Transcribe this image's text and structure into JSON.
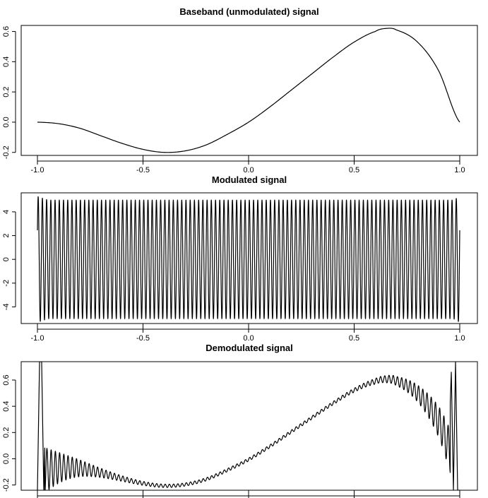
{
  "chart_data": [
    {
      "type": "line",
      "title": "Baseband (unmodulated) signal",
      "xlabel": "",
      "ylabel": "",
      "xlim": [
        -1.0,
        1.0
      ],
      "ylim": [
        -0.22,
        0.64
      ],
      "x_ticks": [
        -1.0,
        -0.5,
        0.0,
        0.5,
        1.0
      ],
      "x_tick_labels": [
        "-1.0",
        "-0.5",
        "0.0",
        "0.5",
        "1.0"
      ],
      "y_ticks": [
        -0.2,
        0.0,
        0.2,
        0.4,
        0.6
      ],
      "y_tick_labels": [
        "-0.2",
        "0.0",
        "0.2",
        "0.4",
        "0.6"
      ],
      "grid": false,
      "series": [
        {
          "x": [
            -1.0,
            -0.9,
            -0.8,
            -0.7,
            -0.6,
            -0.5,
            -0.4,
            -0.3,
            -0.2,
            -0.1,
            0.0,
            0.1,
            0.2,
            0.3,
            0.4,
            0.5,
            0.6,
            0.65,
            0.7,
            0.8,
            0.9,
            1.0
          ],
          "y": [
            0.0,
            -0.01,
            -0.04,
            -0.09,
            -0.14,
            -0.18,
            -0.2,
            -0.19,
            -0.15,
            -0.08,
            0.0,
            0.1,
            0.21,
            0.32,
            0.43,
            0.53,
            0.6,
            0.62,
            0.61,
            0.53,
            0.34,
            0.0
          ]
        }
      ]
    },
    {
      "type": "line",
      "title": "Modulated signal",
      "xlabel": "",
      "ylabel": "",
      "xlim": [
        -1.0,
        1.0
      ],
      "ylim": [
        -5.4,
        5.6
      ],
      "x_ticks": [
        -1.0,
        -0.5,
        0.0,
        0.5,
        1.0
      ],
      "x_tick_labels": [
        "-1.0",
        "-0.5",
        "0.0",
        "0.5",
        "1.0"
      ],
      "y_ticks": [
        -4,
        -2,
        0,
        2,
        4
      ],
      "y_tick_labels": [
        "-4",
        "-2",
        "0",
        "2",
        "4"
      ],
      "grid": false,
      "carrier_cycles_per_unit": 50,
      "envelope": [
        {
          "x": -1.0,
          "y": 5.0
        },
        {
          "x": -0.99,
          "y": 2.3
        },
        {
          "x": -0.985,
          "y": -4.6
        },
        {
          "x": -0.97,
          "y": 5.3
        },
        {
          "x": -0.96,
          "y": -5.0
        },
        {
          "x": -0.95,
          "y": 5.0
        },
        {
          "x": 0.0,
          "y": 5.0
        },
        {
          "x": 0.98,
          "y": 5.0
        },
        {
          "x": 0.985,
          "y": 5.3
        },
        {
          "x": 0.99,
          "y": -5.2
        },
        {
          "x": 1.0,
          "y": 2.3
        }
      ]
    },
    {
      "type": "line",
      "title": "Demodulated signal",
      "xlabel": "",
      "ylabel": "",
      "xlim": [
        -1.0,
        1.0
      ],
      "ylim": [
        -0.24,
        0.74
      ],
      "x_ticks": [
        -1.0,
        -0.5,
        0.0,
        0.5,
        1.0
      ],
      "x_tick_labels": [
        "",
        "",
        "",
        "",
        ""
      ],
      "y_ticks": [
        -0.2,
        0.0,
        0.2,
        0.4,
        0.6
      ],
      "y_tick_labels": [
        "-0.2",
        "0.0",
        "0.2",
        "0.4",
        "0.6"
      ],
      "grid": false,
      "series": [
        {
          "x": [
            -1.0,
            -0.99,
            -0.98,
            -0.97,
            -0.96,
            -0.95,
            -0.9,
            -0.8,
            -0.7,
            -0.6,
            -0.5,
            -0.4,
            -0.3,
            -0.2,
            -0.1,
            0.0,
            0.1,
            0.2,
            0.3,
            0.4,
            0.5,
            0.6,
            0.7,
            0.8,
            0.9,
            0.95,
            0.96,
            0.97,
            0.98,
            0.99,
            1.0
          ],
          "y": [
            -0.24,
            0.74,
            0.74,
            -0.24,
            0.45,
            -0.24,
            0.26,
            0.05,
            -0.08,
            -0.15,
            -0.19,
            -0.2,
            -0.18,
            -0.14,
            -0.08,
            0.0,
            0.1,
            0.21,
            0.32,
            0.43,
            0.53,
            0.6,
            0.62,
            0.6,
            0.55,
            0.2,
            0.66,
            -0.24,
            0.74,
            -0.24,
            -0.24
          ]
        }
      ],
      "oscillation_amplitude_start": 0.3,
      "oscillation_cycles_per_unit": 50
    }
  ]
}
